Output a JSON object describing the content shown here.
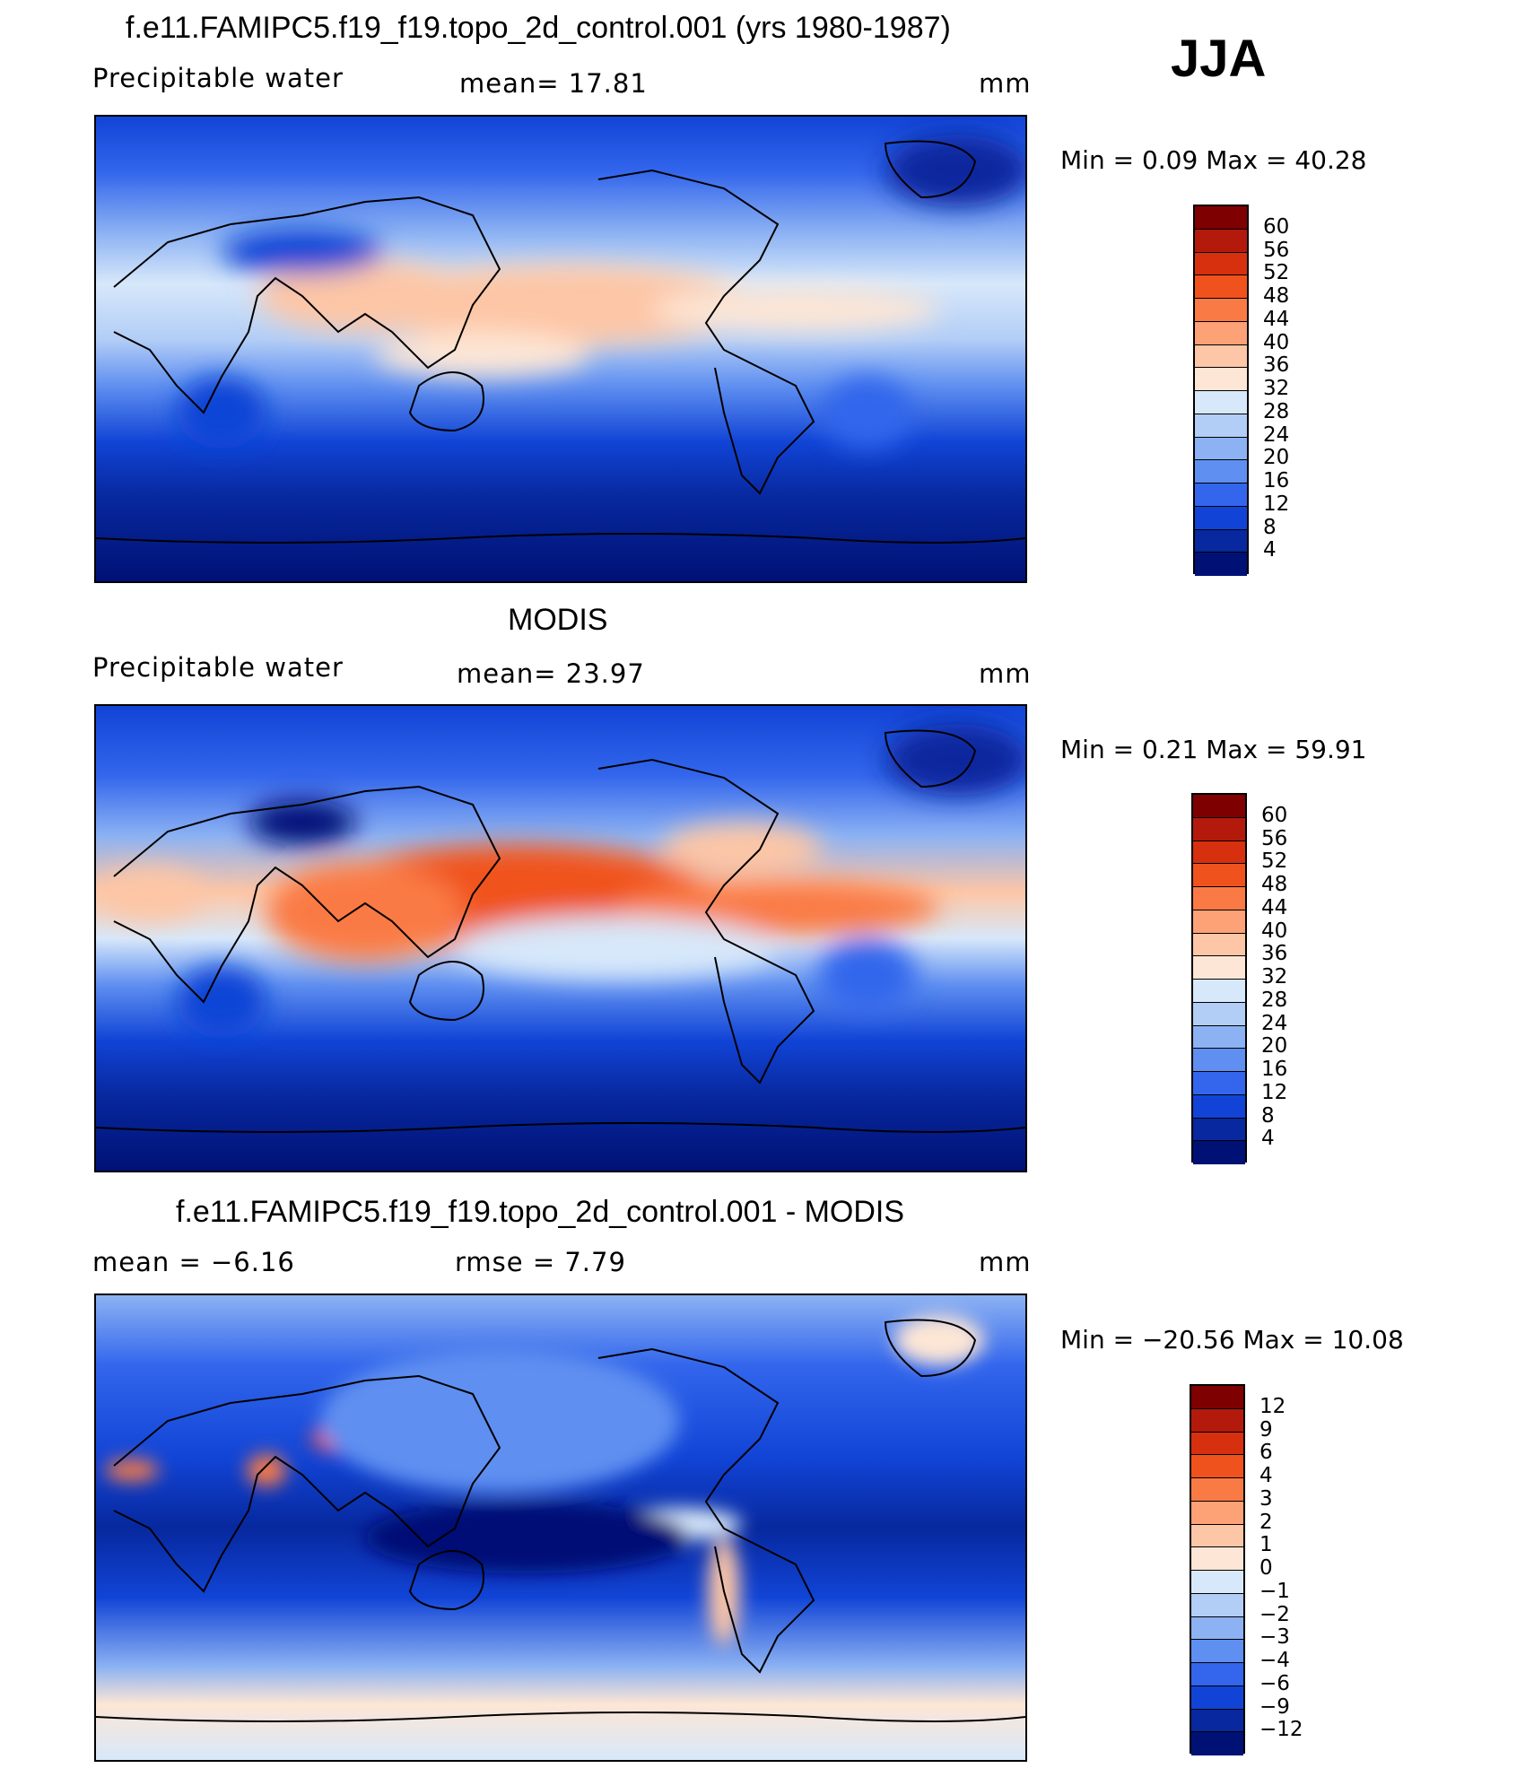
{
  "season": "JJA",
  "panels": [
    {
      "title": "f.e11.FAMIPC5.f19_f19.topo_2d_control.001 (yrs 1980-1987)",
      "left_label": "Precipitable  water",
      "center_label": "mean=   17.81",
      "units": "mm",
      "min_max": "Min  =     0.09  Max  =    40.28",
      "levels": [
        "60",
        "56",
        "52",
        "48",
        "44",
        "40",
        "36",
        "32",
        "28",
        "24",
        "20",
        "16",
        "12",
        "8",
        "4"
      ],
      "colors": [
        "#7f0000",
        "#b31a0c",
        "#d6300f",
        "#f0521e",
        "#fa7a45",
        "#fda177",
        "#fdc6a6",
        "#fde6d5",
        "#d7e8fa",
        "#b2cdf6",
        "#8cb2f3",
        "#5f8ff0",
        "#3366ec",
        "#1144d6",
        "#07289e",
        "#001176"
      ]
    },
    {
      "title": "MODIS",
      "left_label": "Precipitable  water",
      "center_label": "mean=   23.97",
      "units": "mm",
      "min_max": "Min  =     0.21  Max  =    59.91",
      "levels": [
        "60",
        "56",
        "52",
        "48",
        "44",
        "40",
        "36",
        "32",
        "28",
        "24",
        "20",
        "16",
        "12",
        "8",
        "4"
      ],
      "colors": [
        "#7f0000",
        "#b31a0c",
        "#d6300f",
        "#f0521e",
        "#fa7a45",
        "#fda177",
        "#fdc6a6",
        "#fde6d5",
        "#d7e8fa",
        "#b2cdf6",
        "#8cb2f3",
        "#5f8ff0",
        "#3366ec",
        "#1144d6",
        "#07289e",
        "#001176"
      ]
    },
    {
      "title": "f.e11.FAMIPC5.f19_f19.topo_2d_control.001 - MODIS",
      "left_label": "mean  =    −6.16",
      "center_label": "rmse  =     7.79",
      "units": "mm",
      "min_max": "Min  =  −20.56  Max  =    10.08",
      "levels": [
        "12",
        "9",
        "6",
        "4",
        "3",
        "2",
        "1",
        "0",
        "−1",
        "−2",
        "−3",
        "−4",
        "−6",
        "−9",
        "−12"
      ],
      "colors": [
        "#7f0000",
        "#b31a0c",
        "#d6300f",
        "#f0521e",
        "#fa7a45",
        "#fda177",
        "#fdc6a6",
        "#fde6d5",
        "#d7e8fa",
        "#b2cdf6",
        "#8cb2f3",
        "#5f8ff0",
        "#3366ec",
        "#1144d6",
        "#07289e",
        "#001176"
      ]
    }
  ]
}
